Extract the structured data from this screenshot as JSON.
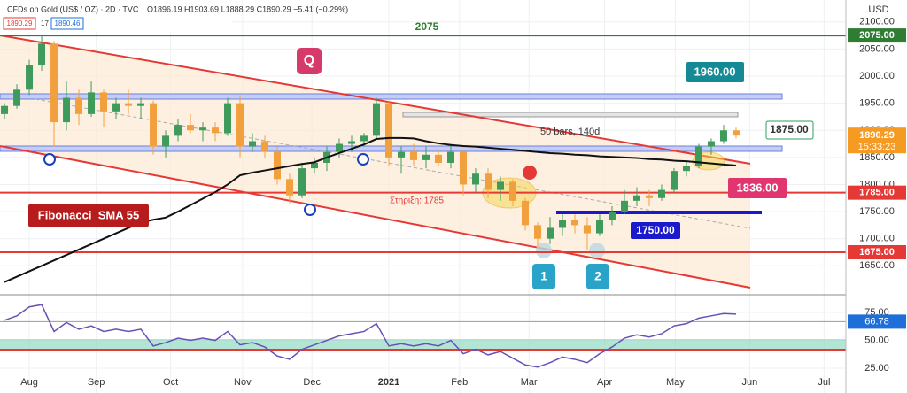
{
  "header": {
    "symbol": "CFDs on Gold (US$ / OZ) · 2D · TVC",
    "ohlc": "O1896.19 H1903.69 L1888.29 C1890.29 −5.41 (−0.29%)",
    "bid": "1890.29",
    "spread": "17",
    "ask": "1890.46",
    "currency": "USD"
  },
  "chart_data": [
    {
      "type": "candlestick",
      "up_color": "#3f9b5c",
      "down_color": "#f2a03d",
      "grid": true,
      "categories": [
        null,
        null,
        null,
        null,
        null,
        null,
        null,
        null,
        null,
        null,
        null,
        null,
        null,
        null,
        null,
        null,
        null,
        null,
        null,
        null,
        null,
        null,
        null,
        null,
        null,
        null,
        null,
        null,
        null,
        null,
        null,
        null,
        null,
        null,
        null,
        null,
        null,
        null,
        null,
        null,
        null,
        null,
        null,
        null,
        null,
        null,
        null,
        null,
        null,
        null,
        null,
        null,
        null,
        null,
        null,
        null,
        null,
        null,
        null,
        null
      ],
      "open": [
        1930,
        1945,
        1975,
        2020,
        2060,
        1915,
        1960,
        1930,
        1970,
        1935,
        1950,
        1945,
        1950,
        1870,
        1890,
        1910,
        1900,
        1905,
        1895,
        1950,
        1870,
        1880,
        1860,
        1810,
        1780,
        1830,
        1840,
        1860,
        1875,
        1880,
        1890,
        1950,
        1850,
        1860,
        1845,
        1855,
        1840,
        1860,
        1800,
        1820,
        1790,
        1805,
        1770,
        1725,
        1700,
        1720,
        1735,
        1725,
        1710,
        1735,
        1750,
        1770,
        1780,
        1775,
        1790,
        1825,
        1835,
        1870,
        1880,
        1900
      ],
      "high": [
        1950,
        1985,
        2030,
        2075,
        2065,
        1990,
        1975,
        1990,
        1975,
        1960,
        1975,
        1960,
        1955,
        1900,
        1920,
        1930,
        1915,
        1915,
        1960,
        1965,
        1895,
        1890,
        1870,
        1820,
        1840,
        1850,
        1870,
        1885,
        1890,
        1895,
        1960,
        1955,
        1870,
        1875,
        1870,
        1865,
        1875,
        1865,
        1830,
        1830,
        1815,
        1810,
        1775,
        1730,
        1740,
        1745,
        1745,
        1740,
        1745,
        1760,
        1790,
        1795,
        1790,
        1800,
        1830,
        1845,
        1875,
        1885,
        1910,
        1905
      ],
      "low": [
        1920,
        1940,
        1965,
        2010,
        1870,
        1900,
        1910,
        1925,
        1905,
        1920,
        1930,
        1920,
        1855,
        1850,
        1880,
        1895,
        1880,
        1880,
        1890,
        1850,
        1860,
        1850,
        1800,
        1765,
        1775,
        1820,
        1825,
        1850,
        1860,
        1870,
        1885,
        1835,
        1820,
        1835,
        1830,
        1835,
        1830,
        1780,
        1785,
        1775,
        1770,
        1760,
        1715,
        1685,
        1690,
        1705,
        1710,
        1680,
        1705,
        1725,
        1745,
        1760,
        1760,
        1770,
        1785,
        1815,
        1830,
        1855,
        1875,
        1885
      ],
      "close": [
        1945,
        1975,
        2020,
        2060,
        1915,
        1960,
        1930,
        1970,
        1935,
        1950,
        1945,
        1950,
        1870,
        1890,
        1910,
        1900,
        1905,
        1895,
        1950,
        1870,
        1880,
        1860,
        1810,
        1780,
        1830,
        1840,
        1860,
        1875,
        1880,
        1890,
        1950,
        1850,
        1860,
        1845,
        1855,
        1840,
        1860,
        1800,
        1820,
        1790,
        1805,
        1770,
        1725,
        1700,
        1720,
        1735,
        1725,
        1710,
        1735,
        1750,
        1770,
        1780,
        1775,
        1790,
        1825,
        1835,
        1870,
        1880,
        1900,
        1890.29
      ],
      "sma": {
        "color": "#111111",
        "values": [
          1620,
          1630,
          1640,
          1650,
          1660,
          1670,
          1680,
          1690,
          1700,
          1710,
          1720,
          1730,
          1735,
          1739,
          1750,
          1762,
          1774,
          1786,
          1800,
          1817,
          1822,
          1826,
          1830,
          1834,
          1838,
          1841,
          1850,
          1858,
          1866,
          1874,
          1884,
          1886,
          1886,
          1885,
          1880,
          1876,
          1873,
          1871,
          1870,
          1868,
          1866,
          1864,
          1862,
          1860,
          1858,
          1857,
          1855,
          1854,
          1852,
          1851,
          1850,
          1849,
          1847,
          1846,
          1844,
          1843,
          1841,
          1839,
          1837,
          1835
        ]
      },
      "xlim": [
        -0.36,
        67.86
      ],
      "xticks": [
        {
          "value": 2,
          "label": "Aug"
        },
        {
          "value": 7.4,
          "label": "Sep"
        },
        {
          "value": 13.4,
          "label": "Oct"
        },
        {
          "value": 19.2,
          "label": "Nov"
        },
        {
          "value": 24.8,
          "label": "Dec"
        },
        {
          "value": 31,
          "label": "2021"
        },
        {
          "value": 36.7,
          "label": "Feb"
        },
        {
          "value": 42.3,
          "label": "Mar"
        },
        {
          "value": 48.4,
          "label": "Apr"
        },
        {
          "value": 54.1,
          "label": "May"
        },
        {
          "value": 60.1,
          "label": "Jun"
        },
        {
          "value": 66.1,
          "label": "Jul"
        }
      ],
      "ylim": [
        1601.5,
        2140.5
      ],
      "yticks": [
        {
          "value": 2100,
          "label": "2100.00"
        },
        {
          "value": 2050,
          "label": "2050.00"
        },
        {
          "value": 2000,
          "label": "2000.00"
        },
        {
          "value": 1950,
          "label": "1950.00"
        },
        {
          "value": 1900,
          "label": "1900.00"
        },
        {
          "value": 1850,
          "label": "1850.00"
        },
        {
          "value": 1800,
          "label": "1800.00"
        },
        {
          "value": 1750,
          "label": "1750.00"
        },
        {
          "value": 1700,
          "label": "1700.00"
        },
        {
          "value": 1650,
          "label": "1650.00"
        }
      ],
      "levels": [
        {
          "value": 2075,
          "label": "2075.00",
          "color": "#2e7d32"
        },
        {
          "value": 1785,
          "label": "1785.00",
          "color": "#e53935"
        },
        {
          "value": 1675,
          "label": "1675.00",
          "color": "#e53935"
        }
      ],
      "last_price": 1890.29,
      "countdown": "15:33:23",
      "last_color": "#f59a23",
      "annotations": [
        "2075",
        "Q",
        "1960.00",
        "1875.00",
        "50 bars, 140d",
        "1836.00",
        "Στηριξη: 1785",
        "Fibonacci  SMA 55",
        "1750.00",
        "1",
        "2"
      ]
    },
    {
      "type": "line",
      "color": "#6a4fb5",
      "values": [
        68,
        72,
        80,
        82,
        58,
        66,
        60,
        63,
        58,
        60,
        58,
        60,
        45,
        48,
        52,
        50,
        52,
        50,
        58,
        46,
        48,
        44,
        36,
        33,
        42,
        46,
        50,
        54,
        56,
        58,
        65,
        45,
        47,
        45,
        47,
        45,
        50,
        38,
        42,
        37,
        40,
        34,
        28,
        26,
        30,
        35,
        33,
        30,
        38,
        44,
        52,
        55,
        53,
        56,
        63,
        65,
        70,
        72,
        74,
        73.5
      ],
      "xlim": [
        -0.36,
        67.86
      ],
      "ylim": [
        2.8,
        90.9
      ],
      "yticks": [
        {
          "value": 75,
          "label": "75.00"
        },
        {
          "value": 50,
          "label": "50.00"
        },
        {
          "value": 25,
          "label": "25.00"
        }
      ],
      "level": 66.78
    }
  ]
}
